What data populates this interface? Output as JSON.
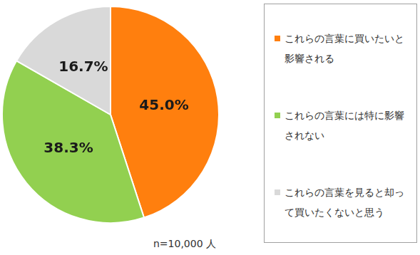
{
  "chart_data": {
    "type": "pie",
    "categories": [
      "これらの言葉に買いたいと影響される",
      "これらの言葉には特に影響されない",
      "これらの言葉を見ると却って買いたくないと思う"
    ],
    "values": [
      45.0,
      38.3,
      16.7
    ],
    "value_labels": [
      "45.0%",
      "38.3%",
      "16.7%"
    ],
    "colors": [
      "#ff7f0e",
      "#92d050",
      "#d9d9d9"
    ],
    "data_labels": true,
    "legend": "right",
    "annotation": "n=10,000 人"
  }
}
